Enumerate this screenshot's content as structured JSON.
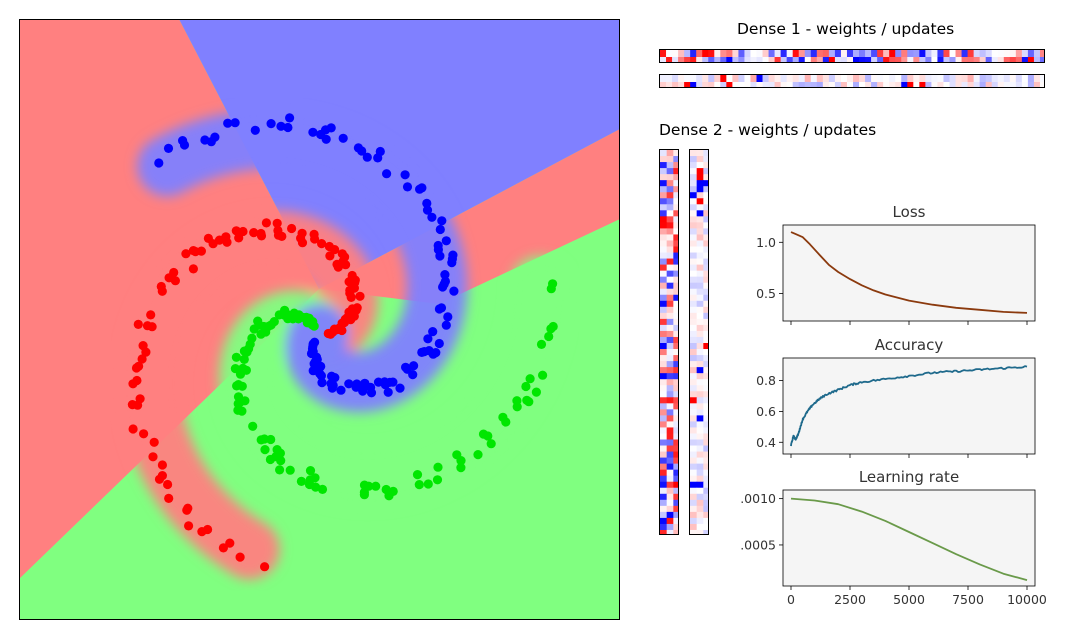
{
  "headings": {
    "dense1": "Dense 1 - weights / updates",
    "dense2": "Dense 2 - weights / updates"
  },
  "colors": {
    "class_red": "#ff0000",
    "class_green": "#00e600",
    "class_blue": "#0000ff",
    "region_red": "#ff8080",
    "region_green": "#80ff80",
    "region_blue": "#8080ff",
    "loss_line": "#8b3a0e",
    "accuracy_line": "#1f6a8c",
    "lr_line": "#6a9a4a",
    "panel_bg": "#f5f5f5"
  },
  "chart_data": [
    {
      "type": "scatter",
      "title": "",
      "description_of_background": "decision regions of a 3-class spiral classifier",
      "xlim": [
        -1,
        1
      ],
      "ylim": [
        -1,
        1
      ],
      "series": [
        {
          "class": "red",
          "arms_turns": 2.2
        },
        {
          "class": "green",
          "arms_turns": 2.2
        },
        {
          "class": "blue",
          "arms_turns": 2.2
        }
      ]
    },
    {
      "type": "heatmap",
      "title": "Dense 1 - weights / updates",
      "rows": 2,
      "cols": 64
    },
    {
      "type": "heatmap",
      "title": "Dense 2 - weights / updates",
      "rows": 64,
      "cols": 3
    },
    {
      "type": "line",
      "title": "Loss",
      "xlim": [
        0,
        10000
      ],
      "ylim": [
        0.27,
        1.13
      ],
      "yticks": [
        "0.5",
        "1.0"
      ],
      "x": [
        0,
        200,
        500,
        800,
        1200,
        1600,
        2000,
        2500,
        3000,
        3500,
        4000,
        5000,
        6000,
        7000,
        8000,
        9000,
        10000
      ],
      "values": [
        1.1,
        1.08,
        1.05,
        0.98,
        0.88,
        0.78,
        0.71,
        0.64,
        0.58,
        0.53,
        0.49,
        0.43,
        0.39,
        0.36,
        0.34,
        0.32,
        0.31
      ]
    },
    {
      "type": "line",
      "title": "Accuracy",
      "xlim": [
        0,
        10000
      ],
      "ylim": [
        0.35,
        0.92
      ],
      "yticks": [
        "0.4",
        "0.6",
        "0.8"
      ],
      "x": [
        0,
        100,
        200,
        300,
        400,
        500,
        700,
        900,
        1200,
        1500,
        2000,
        2500,
        3000,
        4000,
        5000,
        6000,
        7000,
        8000,
        9000,
        10000
      ],
      "values": [
        0.38,
        0.44,
        0.42,
        0.45,
        0.5,
        0.55,
        0.6,
        0.64,
        0.68,
        0.71,
        0.74,
        0.77,
        0.79,
        0.81,
        0.83,
        0.85,
        0.86,
        0.87,
        0.88,
        0.89
      ]
    },
    {
      "type": "line",
      "title": "Learning rate",
      "xlim": [
        0,
        10000
      ],
      "ylim": [
        0.0001,
        0.00105
      ],
      "yticks": [
        "0.0005",
        "0.0010"
      ],
      "xticks": [
        "0",
        "2500",
        "5000",
        "7500",
        "10000"
      ],
      "x": [
        0,
        1000,
        2000,
        3000,
        4000,
        5000,
        6000,
        7000,
        8000,
        9000,
        10000
      ],
      "values": [
        0.001,
        0.00098,
        0.00094,
        0.00086,
        0.00076,
        0.00064,
        0.00052,
        0.0004,
        0.00029,
        0.00019,
        0.00012
      ]
    }
  ]
}
